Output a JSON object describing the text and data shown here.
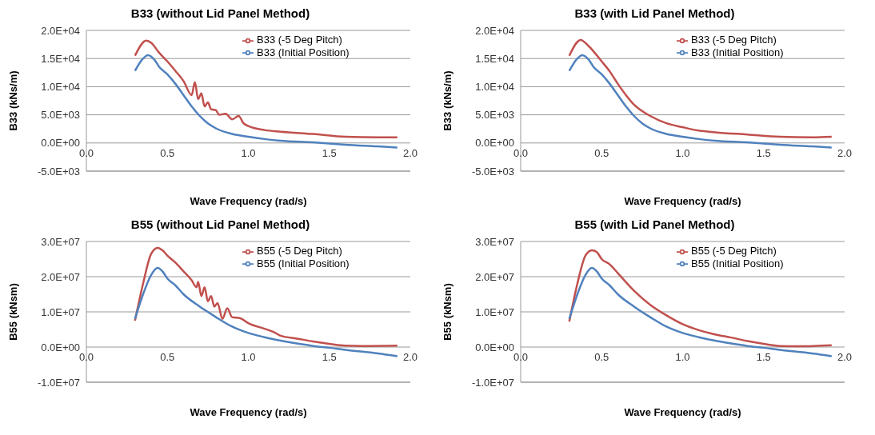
{
  "chart_data": [
    {
      "type": "line",
      "title": "B33 (without Lid Panel Method)",
      "xlabel": "Wave Frequency (rad/s)",
      "ylabel": "B33 (kNs/m)",
      "xlim": [
        0,
        2
      ],
      "xticks": [
        {
          "value": 0,
          "label": "0.0"
        },
        {
          "value": 0.5,
          "label": "0.5"
        },
        {
          "value": 1,
          "label": "1.0"
        },
        {
          "value": 1.5,
          "label": "1.5"
        },
        {
          "value": 2,
          "label": "2.0"
        }
      ],
      "ylim": [
        -5000,
        20000
      ],
      "yticks": [
        {
          "value": -5000,
          "label": "-5.0E+03"
        },
        {
          "value": 0,
          "label": "0.0E+00"
        },
        {
          "value": 5000,
          "label": "5.0E+03"
        },
        {
          "value": 10000,
          "label": "1.0E+04"
        },
        {
          "value": 15000,
          "label": "1.5E+04"
        },
        {
          "value": 20000,
          "label": "2.0E+04"
        }
      ],
      "grid": "y",
      "legend": "top right",
      "marker": "none",
      "line_style": "solid",
      "series": [
        {
          "name": "B33 (-5 Deg Pitch)",
          "color": "#c0504d",
          "x": [
            0.3,
            0.37,
            0.4,
            0.45,
            0.5,
            0.55,
            0.6,
            0.65,
            0.67,
            0.69,
            0.71,
            0.73,
            0.75,
            0.77,
            0.8,
            0.82,
            0.86,
            0.9,
            0.94,
            0.97,
            1.0,
            1.1,
            1.2,
            1.4,
            1.6,
            1.8,
            1.92
          ],
          "values": [
            15500,
            18200,
            17800,
            16000,
            14500,
            12800,
            11000,
            8500,
            10800,
            7800,
            8800,
            6500,
            7200,
            6000,
            5800,
            5000,
            5200,
            4200,
            4800,
            3500,
            3000,
            2300,
            2000,
            1600,
            1100,
            1000,
            1000
          ]
        },
        {
          "name": "B33 (Initial Position)",
          "color": "#4f81bd",
          "x": [
            0.3,
            0.35,
            0.38,
            0.42,
            0.45,
            0.5,
            0.55,
            0.6,
            0.65,
            0.7,
            0.75,
            0.8,
            0.9,
            1.0,
            1.1,
            1.2,
            1.4,
            1.5,
            1.6,
            1.8,
            1.92
          ],
          "values": [
            12800,
            15000,
            15600,
            14800,
            13500,
            12200,
            10500,
            8500,
            6500,
            4800,
            3500,
            2600,
            1600,
            1100,
            700,
            400,
            100,
            -100,
            -300,
            -600,
            -800
          ]
        }
      ]
    },
    {
      "type": "line",
      "title": "B33 (with Lid Panel Method)",
      "xlabel": "Wave Frequency (rad/s)",
      "ylabel": "B33 (kNs/m)",
      "xlim": [
        0,
        2
      ],
      "xticks": [
        {
          "value": 0,
          "label": "0.0"
        },
        {
          "value": 0.5,
          "label": "0.5"
        },
        {
          "value": 1,
          "label": "1.0"
        },
        {
          "value": 1.5,
          "label": "1.5"
        },
        {
          "value": 2,
          "label": "2.0"
        }
      ],
      "ylim": [
        -5000,
        20000
      ],
      "yticks": [
        {
          "value": -5000,
          "label": "-5.0E+03"
        },
        {
          "value": 0,
          "label": "0.0E+00"
        },
        {
          "value": 5000,
          "label": "5.0E+03"
        },
        {
          "value": 10000,
          "label": "1.0E+04"
        },
        {
          "value": 15000,
          "label": "1.5E+04"
        },
        {
          "value": 20000,
          "label": "2.0E+04"
        }
      ],
      "grid": "y",
      "legend": "top right",
      "marker": "none",
      "line_style": "solid",
      "series": [
        {
          "name": "B33 (-5 Deg Pitch)",
          "color": "#c0504d",
          "x": [
            0.3,
            0.37,
            0.42,
            0.5,
            0.55,
            0.6,
            0.65,
            0.7,
            0.8,
            0.9,
            1.0,
            1.1,
            1.2,
            1.4,
            1.6,
            1.8,
            1.92
          ],
          "values": [
            15500,
            18300,
            17200,
            14500,
            12700,
            10500,
            8500,
            6800,
            4800,
            3500,
            2800,
            2200,
            1900,
            1500,
            1100,
            1000,
            1100
          ]
        },
        {
          "name": "B33 (Initial Position)",
          "color": "#4f81bd",
          "x": [
            0.3,
            0.35,
            0.38,
            0.42,
            0.45,
            0.5,
            0.55,
            0.6,
            0.65,
            0.7,
            0.75,
            0.8,
            0.9,
            1.0,
            1.1,
            1.2,
            1.4,
            1.5,
            1.6,
            1.8,
            1.92
          ],
          "values": [
            12800,
            15000,
            15600,
            14800,
            13500,
            12200,
            10500,
            8500,
            6500,
            4800,
            3500,
            2600,
            1600,
            1100,
            700,
            400,
            100,
            -100,
            -300,
            -600,
            -800
          ]
        }
      ]
    },
    {
      "type": "line",
      "title": "B55 (without Lid Panel Method)",
      "xlabel": "Wave Frequency (rad/s)",
      "ylabel": "B55 (kNsm)",
      "xlim": [
        0,
        2
      ],
      "xticks": [
        {
          "value": 0,
          "label": "0.0"
        },
        {
          "value": 0.5,
          "label": "0.5"
        },
        {
          "value": 1,
          "label": "1.0"
        },
        {
          "value": 1.5,
          "label": "1.5"
        },
        {
          "value": 2,
          "label": "2.0"
        }
      ],
      "ylim": [
        -10000000,
        30000000
      ],
      "yticks": [
        {
          "value": -10000000,
          "label": "-1.0E+07"
        },
        {
          "value": 0,
          "label": "0.0E+00"
        },
        {
          "value": 10000000,
          "label": "1.0E+07"
        },
        {
          "value": 20000000,
          "label": "2.0E+07"
        },
        {
          "value": 30000000,
          "label": "3.0E+07"
        }
      ],
      "grid": "y",
      "legend": "top right",
      "marker": "none",
      "line_style": "solid",
      "series": [
        {
          "name": "B55 (-5 Deg Pitch)",
          "color": "#c0504d",
          "x": [
            0.3,
            0.35,
            0.4,
            0.44,
            0.47,
            0.5,
            0.55,
            0.6,
            0.65,
            0.68,
            0.69,
            0.71,
            0.73,
            0.75,
            0.77,
            0.79,
            0.81,
            0.84,
            0.87,
            0.9,
            0.95,
            1.0,
            1.1,
            1.16,
            1.2,
            1.3,
            1.4,
            1.5,
            1.6,
            1.7,
            1.92
          ],
          "values": [
            7500000,
            18000000,
            26500000,
            28200000,
            27500000,
            26000000,
            24000000,
            21500000,
            19000000,
            17000000,
            18500000,
            14500000,
            17000000,
            13000000,
            14500000,
            11500000,
            12500000,
            8000000,
            11000000,
            8500000,
            8200000,
            6800000,
            5200000,
            4200000,
            3200000,
            2400000,
            1600000,
            900000,
            400000,
            300000,
            400000
          ]
        },
        {
          "name": "B55 (Initial Position)",
          "color": "#4f81bd",
          "x": [
            0.3,
            0.35,
            0.4,
            0.44,
            0.47,
            0.5,
            0.55,
            0.6,
            0.7,
            0.8,
            0.9,
            1.0,
            1.1,
            1.2,
            1.3,
            1.4,
            1.5,
            1.6,
            1.8,
            1.92
          ],
          "values": [
            8000000,
            15000000,
            20500000,
            22500000,
            21500000,
            19500000,
            17500000,
            15000000,
            11500000,
            8500000,
            5800000,
            4000000,
            2800000,
            1800000,
            1000000,
            300000,
            -200000,
            -800000,
            -1800000,
            -2600000
          ]
        }
      ]
    },
    {
      "type": "line",
      "title": "B55 (with Lid Panel Method)",
      "xlabel": "Wave Frequency (rad/s)",
      "ylabel": "B55 (kNsm)",
      "xlim": [
        0,
        2
      ],
      "xticks": [
        {
          "value": 0,
          "label": "0.0"
        },
        {
          "value": 0.5,
          "label": "0.5"
        },
        {
          "value": 1,
          "label": "1.0"
        },
        {
          "value": 1.5,
          "label": "1.5"
        },
        {
          "value": 2,
          "label": "2.0"
        }
      ],
      "ylim": [
        -10000000,
        30000000
      ],
      "yticks": [
        {
          "value": -10000000,
          "label": "-1.0E+07"
        },
        {
          "value": 0,
          "label": "0.0E+00"
        },
        {
          "value": 10000000,
          "label": "1.0E+07"
        },
        {
          "value": 20000000,
          "label": "2.0E+07"
        },
        {
          "value": 30000000,
          "label": "3.0E+07"
        }
      ],
      "grid": "y",
      "legend": "top right",
      "marker": "none",
      "line_style": "solid",
      "series": [
        {
          "name": "B55 (-5 Deg Pitch)",
          "color": "#c0504d",
          "x": [
            0.3,
            0.35,
            0.4,
            0.44,
            0.47,
            0.5,
            0.55,
            0.6,
            0.7,
            0.8,
            0.9,
            1.0,
            1.1,
            1.2,
            1.3,
            1.4,
            1.5,
            1.6,
            1.7,
            1.92
          ],
          "values": [
            7200000,
            18000000,
            26000000,
            27500000,
            27000000,
            25000000,
            23500000,
            21000000,
            16000000,
            12000000,
            9000000,
            6500000,
            4800000,
            3600000,
            2700000,
            1700000,
            900000,
            300000,
            200000,
            500000
          ]
        },
        {
          "name": "B55 (Initial Position)",
          "color": "#4f81bd",
          "x": [
            0.3,
            0.35,
            0.4,
            0.44,
            0.47,
            0.5,
            0.55,
            0.6,
            0.7,
            0.8,
            0.9,
            1.0,
            1.1,
            1.2,
            1.3,
            1.4,
            1.5,
            1.6,
            1.8,
            1.92
          ],
          "values": [
            8000000,
            15000000,
            20500000,
            22500000,
            21500000,
            19500000,
            17500000,
            15000000,
            11500000,
            8500000,
            5800000,
            4000000,
            2800000,
            1800000,
            1000000,
            300000,
            -200000,
            -800000,
            -1800000,
            -2600000
          ]
        }
      ]
    }
  ]
}
